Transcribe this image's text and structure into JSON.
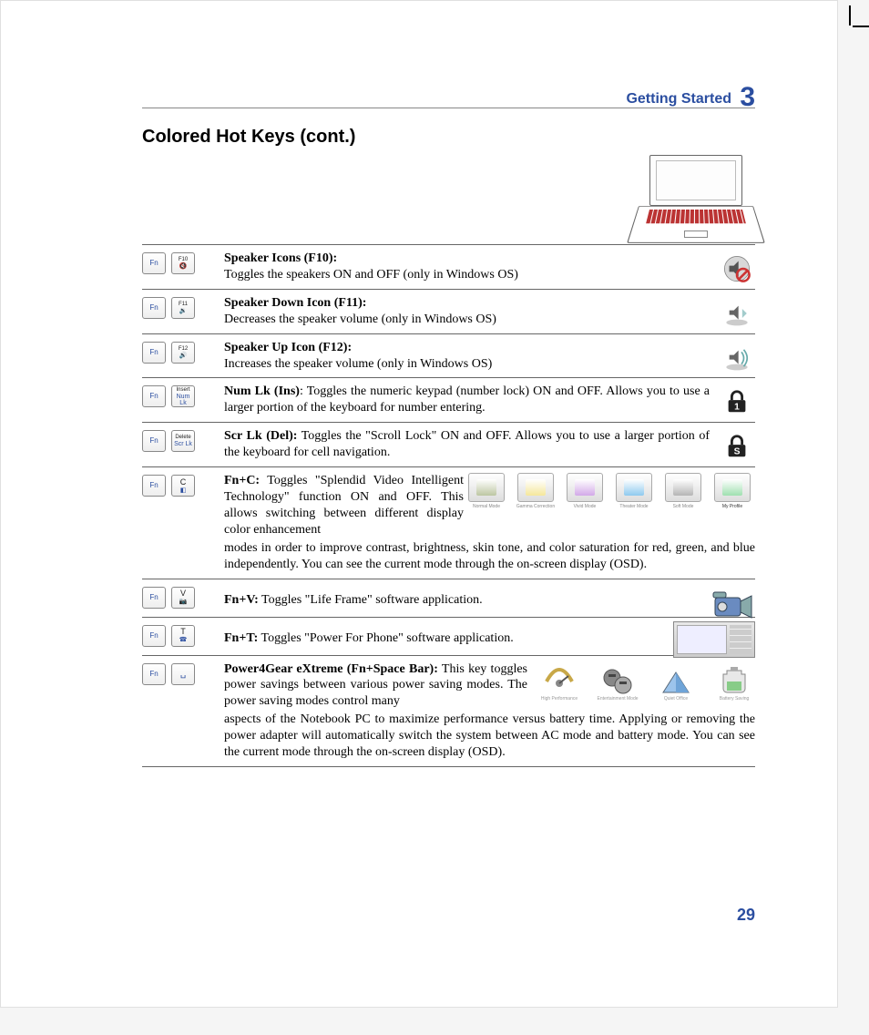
{
  "header": {
    "section_label": "Getting Started",
    "chapter_number": "3"
  },
  "title": "Colored Hot Keys (cont.)",
  "keycaps": {
    "fn": "Fn",
    "f10_top": "F10",
    "f10_btm": "🔇",
    "f11_top": "F11",
    "f11_btm": "🔉",
    "f12_top": "F12",
    "f12_btm": "🔊",
    "ins_top": "Insert",
    "ins_btm": "Num Lk",
    "del_top": "Delete",
    "del_btm": "Scr Lk",
    "c_top": "C",
    "c_btm": "◧",
    "v_top": "V",
    "v_btm": "📷",
    "t_top": "T",
    "t_btm": "☎",
    "space": " "
  },
  "items": {
    "f10": {
      "title": "Speaker Icons (F10):",
      "body": "Toggles the speakers ON and OFF (only in Windows OS)"
    },
    "f11": {
      "title": "Speaker Down Icon (F11):",
      "body": "Decreases the speaker volume (only in Windows OS)"
    },
    "f12": {
      "title": "Speaker Up Icon (F12):",
      "body": "Increases the speaker volume (only in Windows OS)"
    },
    "numlk": {
      "title": "Num Lk (Ins)",
      "body": ": Toggles the numeric keypad (number lock) ON and OFF. Allows you to use a larger portion of the keyboard for number entering."
    },
    "scrlk": {
      "title": "Scr Lk (Del):",
      "body": " Toggles the \"Scroll Lock\" ON and OFF. Allows you to use a larger portion of the keyboard for cell navigation."
    },
    "fnc": {
      "title": "Fn+C:",
      "body": " Toggles \"Splendid Video Intelligent Technology\" function ON and OFF. This allows switching between different display color enhancement modes in order to improve contrast, brightness, skin tone, and color saturation for red, green, and blue independently. You can see the current mode through the on-screen display (OSD).",
      "body_short": " Toggles \"Splendid Video Intelligent Technology\" function ON and OFF. This allows switching between different display color enhancement",
      "body_rest": "modes in order to improve contrast, brightness, skin tone, and color saturation for red, green, and blue independently. You can see the current mode through the on-screen display (OSD)."
    },
    "fnv": {
      "title": "Fn+V:",
      "body": " Toggles \"Life Frame\" software application."
    },
    "fnt": {
      "title": "Fn+T:",
      "body": " Toggles \"Power For Phone\" software application."
    },
    "p4g": {
      "title": "Power4Gear eXtreme (Fn+Space Bar):",
      "body_short": " This key toggles power savings between various power saving modes. The power saving modes control many",
      "body_rest": "aspects of the Notebook PC to maximize performance versus battery time. Applying or removing the power adapter will automatically switch the system between AC mode and battery mode. You can see the current mode through the on-screen display (OSD)."
    }
  },
  "splendid_modes": {
    "m1": {
      "label": "Normal Mode",
      "color": "#bdc6a2"
    },
    "m2": {
      "label": "Gamma Correction",
      "color": "#f5e79b"
    },
    "m3": {
      "label": "Vivid Mode",
      "color": "#d2a9e8"
    },
    "m4": {
      "label": "Theater Mode",
      "color": "#8ec9ef"
    },
    "m5": {
      "label": "Soft Mode",
      "color": "#b5b5b5"
    },
    "m6": {
      "label": "My Profile",
      "color": "#9fe0b0"
    }
  },
  "p4g_modes": {
    "p1": "High Performance",
    "p2": "Entertainment Mode",
    "p3": "Quiet Office",
    "p4": "Battery Saving"
  },
  "page_number": "29",
  "colors": {
    "accent": "#2b4ea0",
    "rule": "#666666"
  }
}
